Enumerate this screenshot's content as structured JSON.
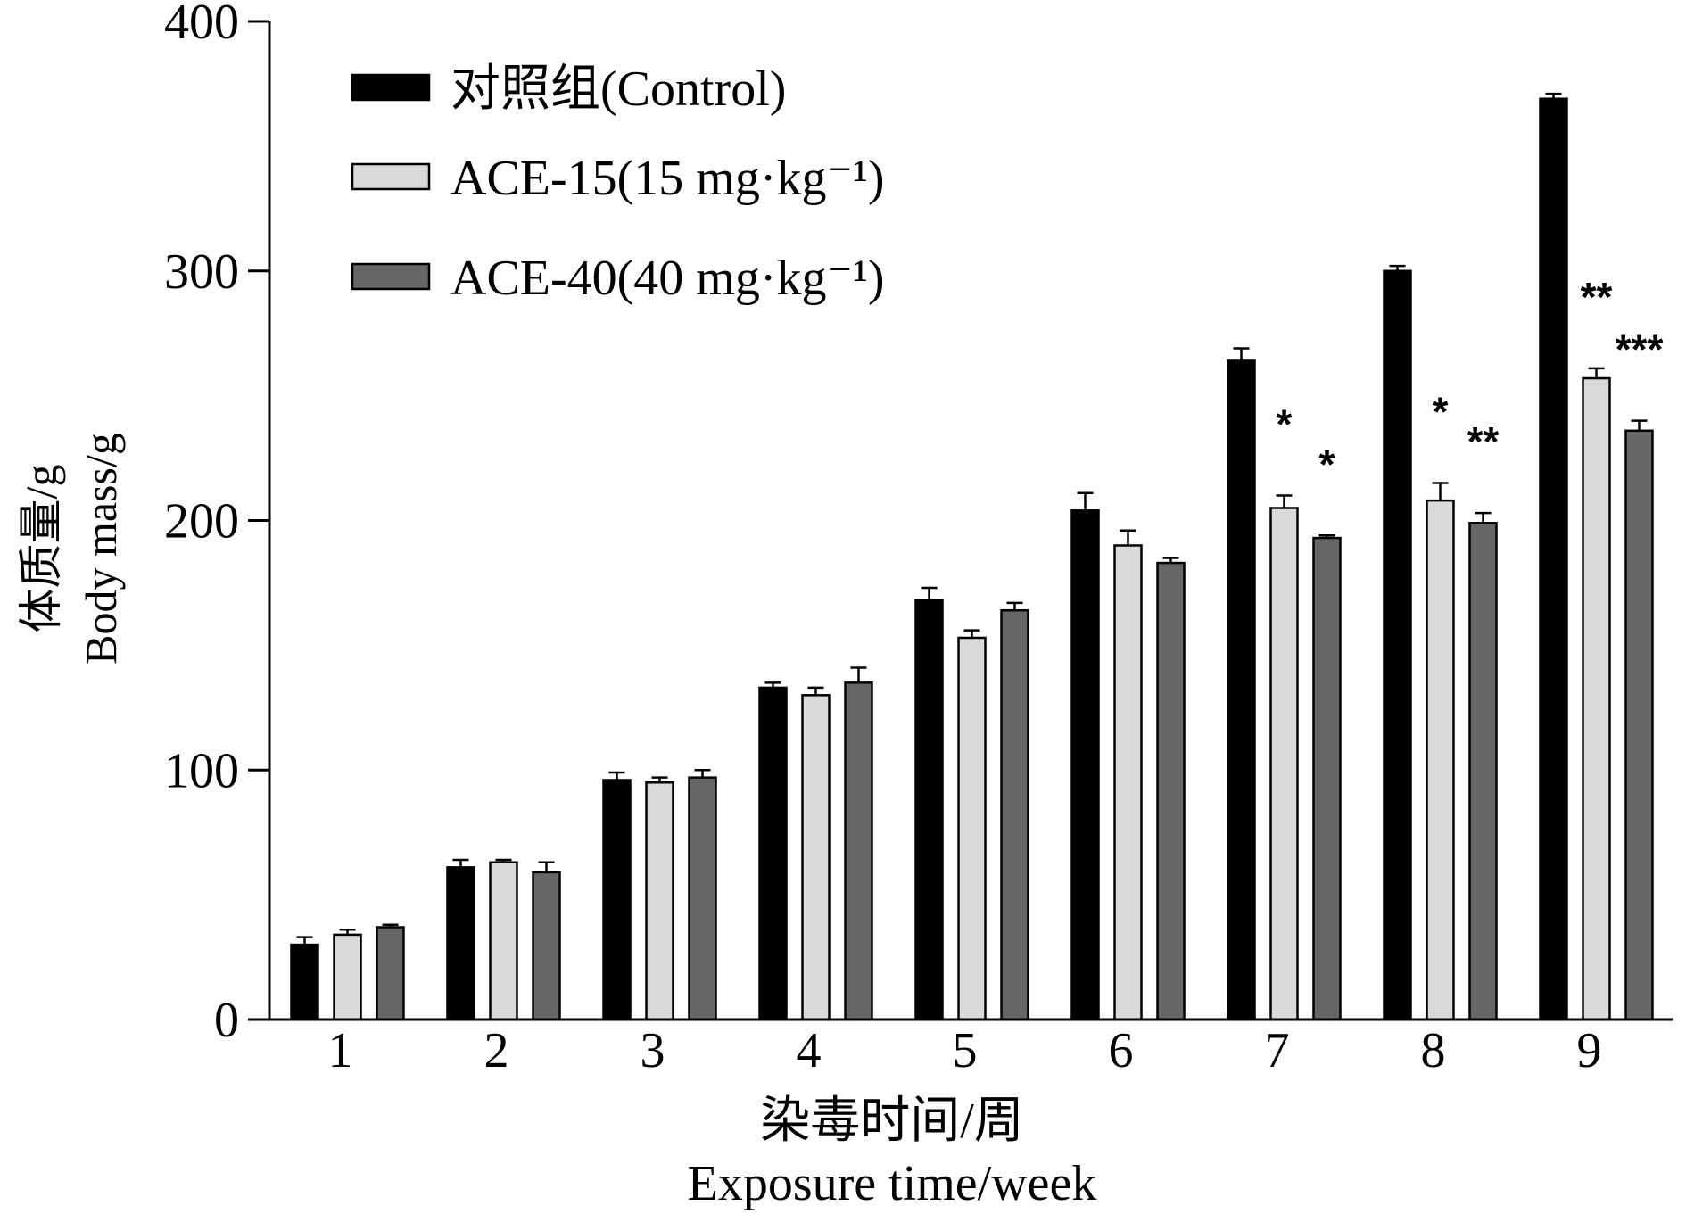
{
  "chart_data": {
    "type": "bar",
    "categories": [
      "1",
      "2",
      "3",
      "4",
      "5",
      "6",
      "7",
      "8",
      "9"
    ],
    "series": [
      {
        "name": "对照组(Control)",
        "color": "#000000",
        "values": [
          30,
          61,
          96,
          133,
          168,
          204,
          264,
          300,
          369
        ],
        "errors": [
          3,
          3,
          3,
          2,
          5,
          7,
          5,
          2,
          2
        ]
      },
      {
        "name": "ACE-15(15 mg·kg⁻¹)",
        "color": "#d9d9d9",
        "values": [
          34,
          63,
          95,
          130,
          153,
          190,
          205,
          208,
          257
        ],
        "errors": [
          2,
          1,
          2,
          3,
          3,
          6,
          5,
          7,
          4
        ]
      },
      {
        "name": "ACE-40(40 mg·kg⁻¹)",
        "color": "#666666",
        "values": [
          37,
          59,
          97,
          135,
          164,
          183,
          193,
          199,
          236
        ],
        "errors": [
          1,
          4,
          3,
          6,
          3,
          2,
          1,
          4,
          4
        ]
      }
    ],
    "significance": [
      {
        "category": "7",
        "series": 1,
        "mark": "*"
      },
      {
        "category": "7",
        "series": 2,
        "mark": "*"
      },
      {
        "category": "8",
        "series": 1,
        "mark": "*"
      },
      {
        "category": "8",
        "series": 2,
        "mark": "**"
      },
      {
        "category": "9",
        "series": 1,
        "mark": "**"
      },
      {
        "category": "9",
        "series": 2,
        "mark": "***"
      }
    ],
    "ylim": [
      0,
      400
    ],
    "yticks": [
      0,
      100,
      200,
      300,
      400
    ],
    "ylabel_cn": "体质量/g",
    "ylabel_en": "Body mass/g",
    "xlabel_cn": "染毒时间/周",
    "xlabel_en": "Exposure time/week",
    "legend_position": "top-left",
    "grid": false
  }
}
